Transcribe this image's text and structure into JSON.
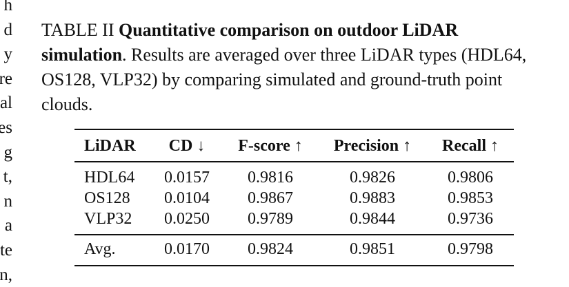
{
  "margin_fragments": [
    "h",
    "d",
    "y",
    "re",
    "al",
    "es",
    "g",
    "t,",
    "n",
    "a",
    "te",
    "n,"
  ],
  "caption": {
    "label": "TABLE II",
    "title": "Quantitative comparison on outdoor LiDAR simulation",
    "text": ". Results are averaged over three LiDAR types (HDL64, OS128, VLP32) by comparing simulated and ground-truth point clouds."
  },
  "table": {
    "header": [
      "LiDAR",
      "CD ↓",
      "F-score ↑",
      "Precision ↑",
      "Recall ↑"
    ],
    "rows": [
      [
        "HDL64",
        "0.0157",
        "0.9816",
        "0.9826",
        "0.9806"
      ],
      [
        "OS128",
        "0.0104",
        "0.9867",
        "0.9883",
        "0.9853"
      ],
      [
        "VLP32",
        "0.0250",
        "0.9789",
        "0.9844",
        "0.9736"
      ]
    ],
    "average": [
      "Avg.",
      "0.0170",
      "0.9824",
      "0.9851",
      "0.9798"
    ]
  }
}
